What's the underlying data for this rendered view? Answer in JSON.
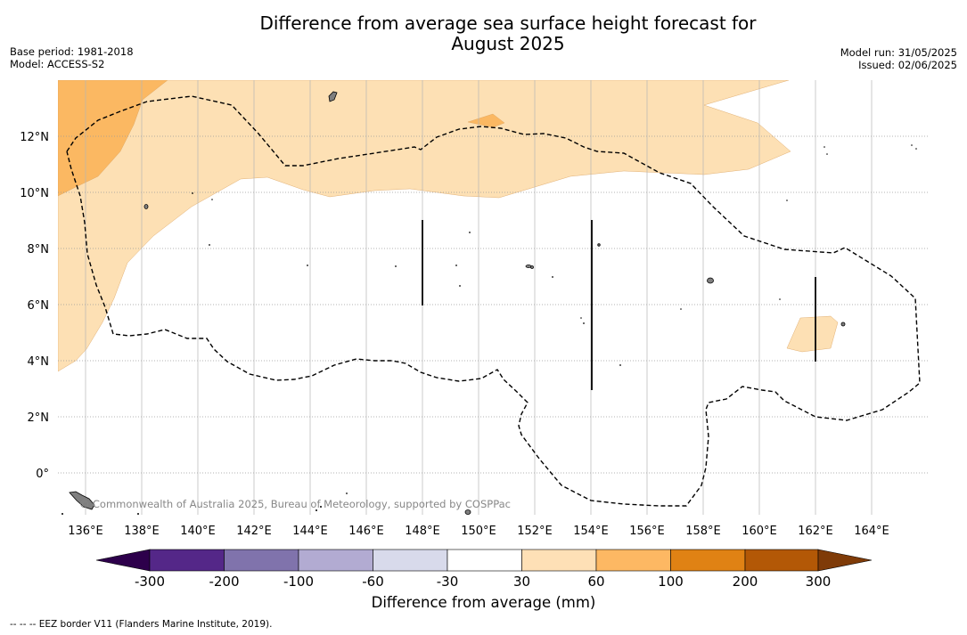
{
  "title_line1": "Difference from average sea surface height forecast for",
  "title_line2": "August 2025",
  "base_period": "Base period: 1981-2018",
  "model": "Model: ACCESS-S2",
  "model_run": "Model run: 31/05/2025",
  "issued": "Issued: 02/06/2025",
  "watermark": "© Commonwealth of Australia 2025, Bureau of Meteorology, supported by COSPPac",
  "footnote": "--  --  -- EEZ border V11 (Flanders Marine Institute, 2019).",
  "map": {
    "lat_labels": [
      "12°N",
      "10°N",
      "8°N",
      "6°N",
      "4°N",
      "2°N",
      "0°"
    ],
    "lon_labels": [
      "136°E",
      "138°E",
      "140°E",
      "142°E",
      "144°E",
      "146°E",
      "148°E",
      "150°E",
      "152°E",
      "154°E",
      "156°E",
      "158°E",
      "160°E",
      "162°E",
      "164°E"
    ],
    "colors": {
      "land": "#7f7f7f",
      "light_orange": "#fde0b4",
      "orange": "#fbb862"
    }
  },
  "colorbar": {
    "title": "Difference from average (mm)",
    "ticks": [
      "-300",
      "-200",
      "-100",
      "-60",
      "-30",
      "30",
      "60",
      "100",
      "200",
      "300"
    ],
    "colors": [
      "#2d004b",
      "#542788",
      "#8073ac",
      "#b2abd2",
      "#d8daeb",
      "#ffffff",
      "#fee0b6",
      "#fdb863",
      "#e08214",
      "#b35806",
      "#7f3b08"
    ]
  }
}
